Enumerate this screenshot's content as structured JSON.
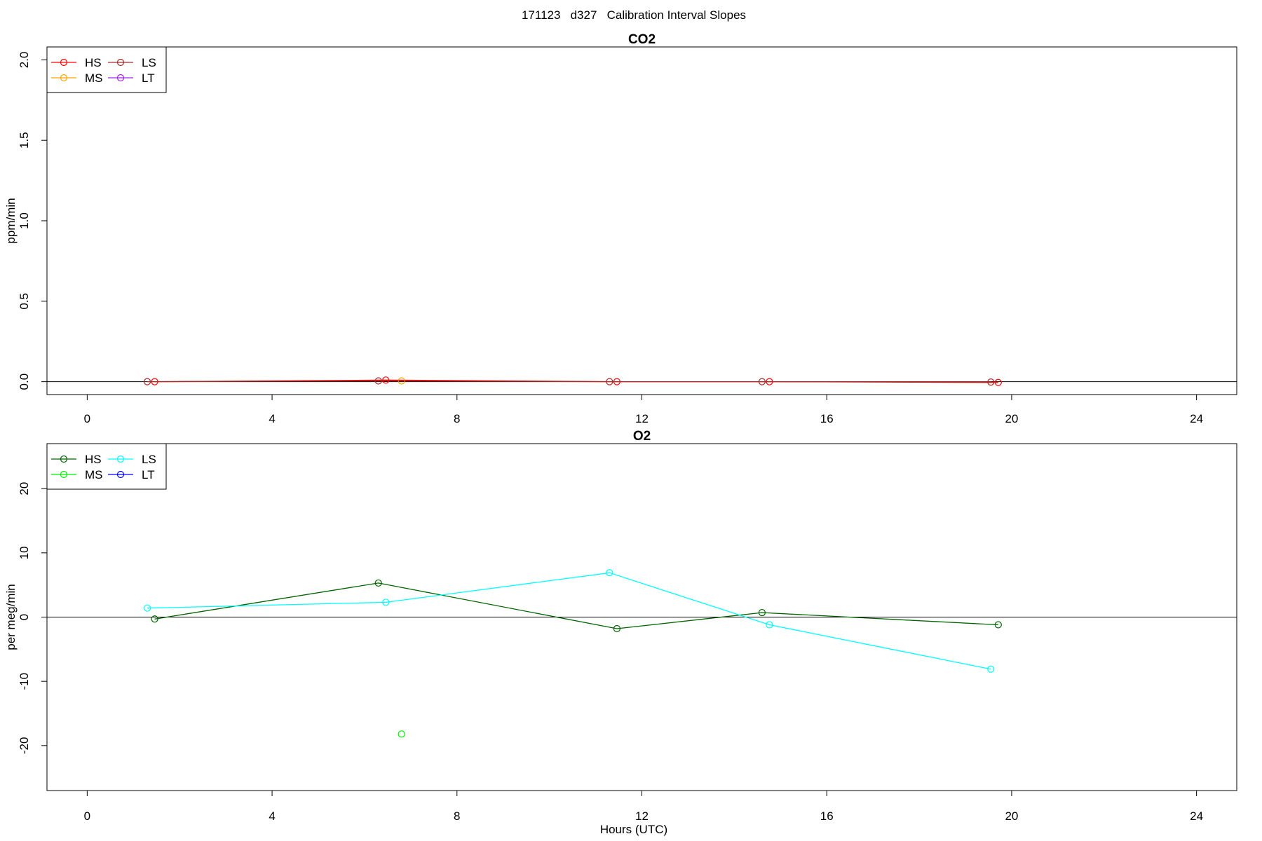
{
  "figure": {
    "title": "171123   d327   Calibration Interval Slopes",
    "xlabel": "Hours (UTC)"
  },
  "chart_data": [
    {
      "type": "line",
      "title": "CO2",
      "xlabel": "",
      "ylabel": "ppm/min",
      "xlim": [
        -0.87,
        24.87
      ],
      "ylim": [
        -0.08,
        2.08
      ],
      "xticks": [
        0,
        4,
        8,
        12,
        16,
        20,
        24
      ],
      "yticks": [
        0.0,
        0.5,
        1.0,
        1.5,
        2.0
      ],
      "ytick_labels": [
        "0.0",
        "0.5",
        "1.0",
        "1.5",
        "2.0"
      ],
      "hline": 0,
      "grid": false,
      "legend": {
        "position": "top-left",
        "entries": [
          {
            "name": "HS",
            "color": "#ff0000"
          },
          {
            "name": "MS",
            "color": "#ffa500"
          },
          {
            "name": "LS",
            "color": "#a52a2a"
          },
          {
            "name": "LT",
            "color": "#a020f0"
          }
        ]
      },
      "series": [
        {
          "name": "HS",
          "color": "#ff0000",
          "x": [
            1.46,
            6.46,
            11.46,
            14.76,
            19.71
          ],
          "y": [
            0.0,
            0.01,
            0.0,
            0.0,
            -0.005
          ]
        },
        {
          "name": "MS",
          "color": "#ffa500",
          "x": [
            6.8
          ],
          "y": [
            0.005
          ]
        },
        {
          "name": "LS",
          "color": "#a52a2a",
          "x": [
            1.3,
            6.3,
            11.3,
            14.6,
            19.55
          ],
          "y": [
            0.0,
            0.005,
            0.0,
            0.0,
            -0.002
          ]
        },
        {
          "name": "LT",
          "color": "#a020f0",
          "x": [],
          "y": []
        }
      ]
    },
    {
      "type": "line",
      "title": "O2",
      "xlabel": "Hours (UTC)",
      "ylabel": "per meg/min",
      "xlim": [
        -0.87,
        24.87
      ],
      "ylim": [
        -27,
        27
      ],
      "xticks": [
        0,
        4,
        8,
        12,
        16,
        20,
        24
      ],
      "yticks": [
        -20,
        -10,
        0,
        10,
        20
      ],
      "ytick_labels": [
        "-20",
        "-10",
        "0",
        "10",
        "20"
      ],
      "hline": 0,
      "grid": false,
      "legend": {
        "position": "top-left",
        "entries": [
          {
            "name": "HS",
            "color": "#006400"
          },
          {
            "name": "MS",
            "color": "#00ee00"
          },
          {
            "name": "LS",
            "color": "#00ffff"
          },
          {
            "name": "LT",
            "color": "#0000ff"
          }
        ]
      },
      "series": [
        {
          "name": "HS",
          "color": "#006400",
          "x": [
            1.46,
            6.3,
            11.46,
            14.6,
            19.71
          ],
          "y": [
            -0.3,
            5.3,
            -1.8,
            0.7,
            -1.2
          ]
        },
        {
          "name": "MS",
          "color": "#00ee00",
          "x": [
            6.8
          ],
          "y": [
            -18.2
          ]
        },
        {
          "name": "LS",
          "color": "#00ffff",
          "x": [
            1.3,
            6.46,
            11.3,
            14.76,
            19.55
          ],
          "y": [
            1.4,
            2.3,
            6.9,
            -1.2,
            -8.1
          ]
        },
        {
          "name": "LT",
          "color": "#0000ff",
          "x": [],
          "y": []
        }
      ]
    }
  ]
}
